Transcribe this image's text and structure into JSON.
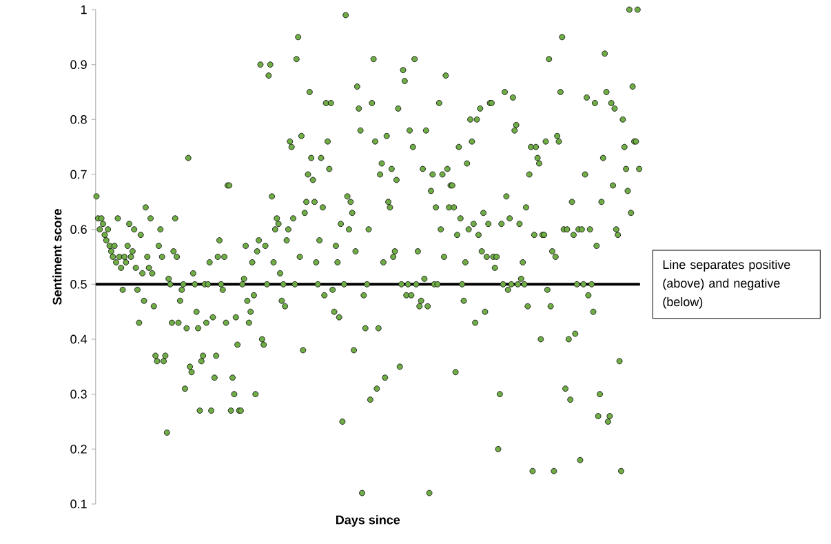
{
  "chart_data": {
    "type": "scatter",
    "xlabel": "Days  since",
    "ylabel": "Sentiment score",
    "categories": [
      null,
      null,
      null,
      null,
      null,
      null,
      null,
      null,
      null,
      null,
      null,
      null,
      null,
      null,
      null,
      null,
      null,
      null,
      null,
      null,
      null,
      null,
      null,
      null,
      null,
      null,
      null,
      null,
      null,
      null,
      null,
      null,
      null,
      null,
      null,
      null,
      null,
      null,
      null,
      null,
      null,
      null,
      null,
      null,
      null,
      null,
      null,
      null,
      null,
      null,
      null,
      null,
      null,
      null,
      null,
      null,
      null,
      null,
      null,
      null,
      null,
      null,
      null,
      null,
      null,
      null,
      null,
      null,
      null,
      null,
      null,
      null,
      null,
      null,
      null,
      null,
      null,
      null,
      null,
      null,
      null,
      null,
      null,
      null,
      null,
      null,
      null,
      null,
      null,
      null,
      null,
      null,
      null,
      null,
      null,
      null,
      null,
      null,
      null,
      null,
      null,
      null,
      null,
      null,
      null,
      null,
      null,
      null,
      null,
      null,
      null,
      null,
      null,
      null,
      null,
      null,
      null,
      null,
      null,
      null,
      null,
      null,
      null,
      null,
      null,
      null,
      null,
      null,
      null,
      null,
      null,
      null,
      null,
      null,
      null,
      null,
      null,
      null,
      null,
      null,
      null,
      null,
      null,
      null,
      null,
      null,
      null,
      null,
      null,
      null,
      null,
      null,
      null,
      null,
      null,
      null,
      null,
      null,
      null,
      null,
      null,
      null,
      null,
      null,
      null,
      null,
      null,
      null,
      null,
      null,
      null,
      null,
      null,
      null,
      null,
      null,
      null,
      null,
      null,
      null,
      null,
      null,
      null,
      null,
      null,
      null,
      null,
      null,
      null,
      null,
      null,
      null,
      null,
      null,
      null,
      null,
      null,
      null,
      null,
      null,
      null,
      null,
      null,
      null,
      null,
      null,
      null,
      null,
      null,
      null,
      null,
      null,
      null,
      null,
      null,
      null,
      null,
      null,
      null,
      null,
      null,
      null,
      null,
      null,
      null,
      null,
      null,
      null,
      null,
      null,
      null,
      null,
      null,
      null,
      null,
      null,
      null,
      null,
      null,
      null,
      null,
      null,
      null,
      null,
      null,
      null,
      null,
      null,
      null,
      null,
      null,
      null,
      null,
      null,
      null,
      null,
      null,
      null,
      null,
      null,
      null,
      null,
      null,
      null,
      null,
      null,
      null,
      null,
      null,
      null,
      null,
      null,
      null,
      null,
      null,
      null,
      null,
      null,
      null,
      null,
      null,
      null,
      null,
      null,
      null,
      null,
      null,
      null,
      null,
      null,
      null,
      null,
      null,
      null,
      null,
      null,
      null,
      null,
      null,
      null,
      null,
      null,
      null,
      null,
      null,
      null,
      null,
      null,
      null,
      null,
      null,
      null,
      null,
      null,
      null,
      null,
      null,
      null,
      null,
      null,
      null,
      null,
      null,
      null,
      null,
      null,
      null,
      null,
      null,
      null,
      null,
      null
    ],
    "values": [
      0.66,
      0.62,
      0.6,
      0.62,
      0.61,
      0.59,
      0.58,
      0.6,
      0.57,
      0.56,
      0.55,
      0.57,
      0.54,
      0.62,
      0.55,
      0.53,
      0.49,
      0.55,
      0.54,
      0.57,
      0.61,
      0.55,
      0.56,
      0.6,
      0.53,
      0.49,
      0.43,
      0.59,
      0.52,
      0.47,
      0.64,
      0.55,
      0.53,
      0.62,
      0.52,
      0.46,
      0.37,
      0.36,
      0.57,
      0.6,
      0.55,
      0.36,
      0.37,
      0.23,
      0.51,
      0.5,
      0.43,
      0.56,
      0.62,
      0.55,
      0.43,
      0.47,
      0.49,
      0.5,
      0.31,
      0.42,
      0.73,
      0.35,
      0.34,
      0.52,
      0.5,
      0.45,
      0.42,
      0.27,
      0.36,
      0.37,
      0.5,
      0.43,
      0.5,
      0.54,
      0.27,
      0.44,
      0.33,
      0.37,
      0.55,
      0.58,
      0.5,
      0.49,
      0.55,
      0.43,
      0.68,
      0.68,
      0.27,
      0.33,
      0.3,
      0.44,
      0.39,
      0.27,
      0.27,
      0.5,
      0.51,
      0.57,
      0.47,
      0.43,
      0.45,
      0.54,
      0.48,
      0.3,
      0.56,
      0.58,
      0.9,
      0.4,
      0.39,
      0.57,
      0.5,
      0.88,
      0.9,
      0.66,
      0.54,
      0.6,
      0.62,
      0.61,
      0.52,
      0.47,
      0.5,
      0.46,
      0.58,
      0.6,
      0.76,
      0.75,
      0.62,
      0.5,
      0.91,
      0.95,
      0.55,
      0.77,
      0.38,
      0.63,
      0.65,
      0.7,
      0.85,
      0.73,
      0.69,
      0.65,
      0.54,
      0.5,
      0.58,
      0.73,
      0.64,
      0.48,
      0.83,
      0.76,
      0.71,
      0.83,
      0.49,
      0.45,
      0.57,
      0.54,
      0.44,
      0.61,
      0.25,
      0.5,
      0.99,
      0.66,
      0.6,
      0.65,
      0.63,
      0.38,
      0.56,
      0.86,
      0.82,
      0.78,
      0.12,
      0.48,
      0.42,
      0.5,
      0.6,
      0.29,
      0.83,
      0.91,
      0.76,
      0.31,
      0.42,
      0.7,
      0.72,
      0.54,
      0.33,
      0.77,
      0.65,
      0.64,
      0.71,
      0.55,
      0.56,
      0.69,
      0.82,
      0.35,
      0.5,
      0.89,
      0.87,
      0.48,
      0.5,
      0.78,
      0.48,
      0.75,
      0.91,
      0.5,
      0.56,
      0.46,
      0.47,
      0.71,
      0.51,
      0.78,
      0.46,
      0.12,
      0.67,
      0.7,
      0.5,
      0.64,
      0.5,
      0.83,
      0.6,
      0.7,
      0.55,
      0.88,
      0.71,
      0.64,
      0.68,
      0.68,
      0.64,
      0.34,
      0.59,
      0.75,
      0.62,
      0.5,
      0.47,
      0.54,
      0.72,
      0.6,
      0.8,
      0.76,
      0.61,
      0.43,
      0.8,
      0.59,
      0.82,
      0.56,
      0.63,
      0.45,
      0.55,
      0.61,
      0.83,
      0.83,
      0.55,
      0.53,
      0.55,
      0.2,
      0.3,
      0.61,
      0.5,
      0.85,
      0.66,
      0.49,
      0.62,
      0.5,
      0.84,
      0.78,
      0.79,
      0.5,
      0.61,
      0.51,
      0.54,
      0.5,
      0.64,
      0.46,
      0.7,
      0.75,
      0.16,
      0.59,
      0.75,
      0.73,
      0.72,
      0.4,
      0.59,
      0.59,
      0.76,
      0.49,
      0.91,
      0.46,
      0.56,
      0.16,
      0.55,
      0.77,
      0.76,
      0.85,
      0.95,
      0.6,
      0.31,
      0.6,
      0.4,
      0.29,
      0.65,
      0.59,
      0.41,
      0.5,
      0.6,
      0.18,
      0.6,
      0.5,
      0.7,
      0.84,
      0.48,
      0.6,
      0.5,
      0.45,
      0.83,
      0.57,
      0.26,
      0.3,
      0.65,
      0.73,
      0.92,
      0.85,
      0.25,
      0.26,
      0.83,
      0.68,
      0.82,
      0.6,
      0.59,
      0.36,
      0.16,
      0.8,
      0.75,
      0.71,
      0.67,
      1.0,
      0.63,
      0.86,
      0.76,
      0.76,
      1.0,
      0.71
    ],
    "color": "#70ad47",
    "marker": "circle",
    "ylim": [
      0.1,
      1
    ],
    "yticks": [
      0.1,
      0.2,
      0.3,
      0.4,
      0.5,
      0.6,
      0.7,
      0.8,
      0.9,
      1
    ],
    "tick_labels": "y",
    "ref_lines": [
      {
        "axis": "y",
        "value": 0.5,
        "label": "Line separates positive (above) and negative (below)",
        "color": "#000000"
      }
    ]
  }
}
